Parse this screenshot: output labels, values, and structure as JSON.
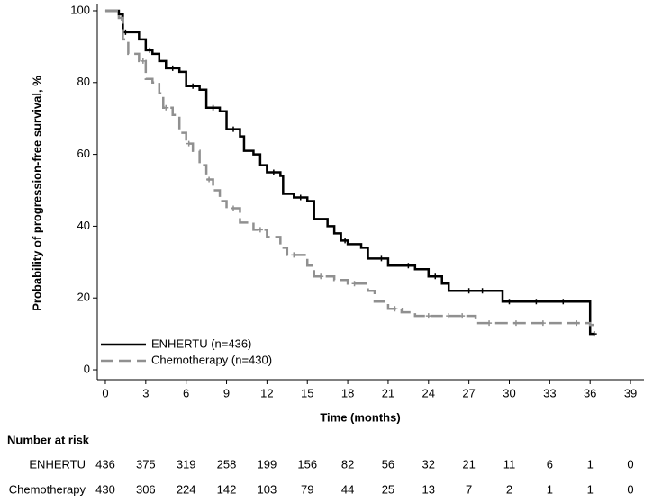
{
  "chart_data": {
    "type": "km",
    "x_label": "Time (months)",
    "y_label": "Probability of progression-free survival, %",
    "xlim": [
      -0.6,
      40
    ],
    "ylim": [
      -2.75,
      101.75
    ],
    "xticks": [
      0,
      3,
      6,
      9,
      12,
      15,
      18,
      21,
      24,
      27,
      30,
      33,
      36,
      39
    ],
    "yticks": [
      0,
      20,
      40,
      60,
      80,
      100
    ],
    "legend": "lower left",
    "series": [
      {
        "name": "ENHERTU (n=436)",
        "color": "#000000",
        "dash": false,
        "x": [
          0,
          1,
          1.3,
          2.5,
          3,
          3.5,
          4,
          4.5,
          5.5,
          6,
          7,
          7.5,
          8.5,
          9,
          10,
          10.3,
          11,
          11.5,
          12,
          13,
          13.2,
          14,
          15,
          15.5,
          16.5,
          17,
          17.5,
          18,
          19,
          19.5,
          21,
          23,
          24,
          25,
          25.5,
          29.5,
          36,
          36.3
        ],
        "y": [
          100,
          99,
          94,
          92,
          89,
          88,
          86,
          84,
          83,
          79,
          78,
          73,
          72,
          67,
          65,
          61,
          60,
          57,
          55,
          54,
          49,
          48,
          47,
          42,
          40,
          38,
          36,
          35,
          34,
          31,
          29,
          28,
          26,
          24,
          22,
          19,
          10,
          10
        ],
        "censor": [
          1.5,
          3.3,
          5,
          6.5,
          8,
          9.5,
          12.5,
          14.5,
          17.8,
          20.5,
          22.5,
          24.5,
          27,
          28,
          30,
          32,
          34,
          36.3
        ]
      },
      {
        "name": "Chemotherapy (n=430)",
        "color": "#909090",
        "dash": true,
        "x": [
          0,
          1,
          1.3,
          1.7,
          2.5,
          3,
          3.5,
          4,
          4.3,
          5,
          5.5,
          6,
          6.5,
          7,
          7.5,
          8,
          8.5,
          9,
          10,
          11,
          12,
          13,
          13.5,
          15,
          15.5,
          17,
          18,
          19.5,
          20,
          21,
          22,
          23,
          27.5,
          36,
          36.3
        ],
        "y": [
          100,
          98,
          92,
          88,
          86,
          81,
          80,
          77,
          73,
          71,
          66,
          63,
          61,
          57,
          53,
          50,
          47,
          45,
          41,
          39,
          37,
          34,
          32,
          29,
          26,
          25,
          24,
          22,
          19,
          17,
          16,
          15,
          13,
          12.5,
          12.5
        ],
        "censor": [
          1.2,
          2.8,
          4.5,
          6.2,
          7.7,
          9.5,
          11.5,
          14,
          16,
          18.5,
          21.5,
          24,
          25.5,
          26.5,
          28.5,
          30.5,
          32.5,
          35
        ]
      }
    ],
    "risk_table": {
      "title": "Number at risk",
      "rows": [
        {
          "name": "ENHERTU",
          "values": [
            436,
            375,
            319,
            258,
            199,
            156,
            82,
            56,
            32,
            21,
            11,
            6,
            1,
            0
          ]
        },
        {
          "name": "Chemotherapy",
          "values": [
            430,
            306,
            224,
            142,
            103,
            79,
            44,
            25,
            13,
            7,
            2,
            1,
            1,
            0
          ]
        }
      ]
    }
  }
}
